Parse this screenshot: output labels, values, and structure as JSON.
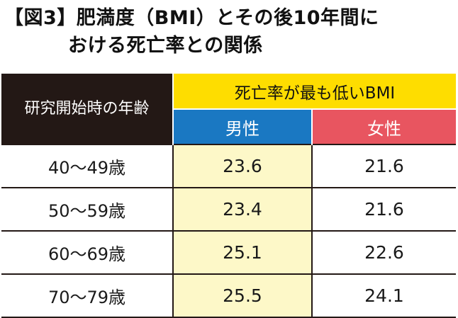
{
  "title": {
    "line1": "【図3】肥満度（BMI）とその後10年間に",
    "line2": "おける死亡率との関係"
  },
  "colors": {
    "dark_header": "#231815",
    "yellow_header": "#fedd00",
    "male_header": "#1a78c2",
    "female_header": "#e85560",
    "male_cells": "#fdf8c8"
  },
  "chart_data": {
    "type": "table",
    "title": "【図3】肥満度（BMI）とその後10年間における死亡率との関係",
    "row_header": "研究開始時の年齢",
    "group_header": "死亡率が最も低いBMI",
    "columns": [
      "男性",
      "女性"
    ],
    "rows": [
      {
        "age": "40〜49歳",
        "male": "23.6",
        "female": "21.6"
      },
      {
        "age": "50〜59歳",
        "male": "23.4",
        "female": "21.6"
      },
      {
        "age": "60〜69歳",
        "male": "25.1",
        "female": "22.6"
      },
      {
        "age": "70〜79歳",
        "male": "25.5",
        "female": "24.1"
      }
    ]
  }
}
